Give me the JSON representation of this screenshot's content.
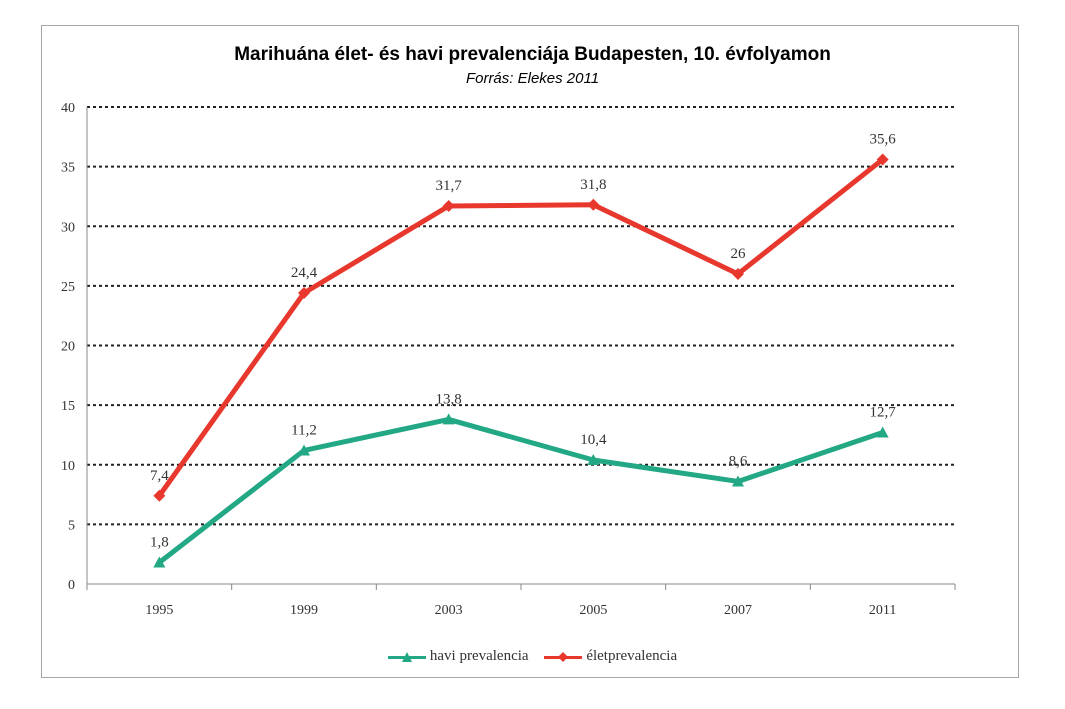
{
  "chart_data": {
    "type": "line",
    "title": "Marihuána élet- és havi prevalenciája Budapesten, 10. évfolyamon",
    "subtitle": "Forrás: Elekes 2011",
    "categories": [
      "1995",
      "1999",
      "2003",
      "2005",
      "2007",
      "2011"
    ],
    "ylim": [
      0,
      40
    ],
    "yticks": [
      0,
      5,
      10,
      15,
      20,
      25,
      30,
      35,
      40
    ],
    "ytick_labels": [
      "0",
      "5",
      "10",
      "15",
      "20",
      "25",
      "30",
      "35",
      "40"
    ],
    "grid": true,
    "legend_position": "bottom",
    "series": [
      {
        "name": "havi prevalencia",
        "values": [
          1.8,
          11.2,
          13.8,
          10.4,
          8.6,
          12.7
        ],
        "labels": [
          "1,8",
          "11,2",
          "13,8",
          "10,4",
          "8,6",
          "12,7"
        ],
        "color": "#22a884",
        "marker": "triangle"
      },
      {
        "name": "életprevalencia",
        "values": [
          7.4,
          24.4,
          31.7,
          31.8,
          26,
          35.6
        ],
        "labels": [
          "7,4",
          "24,4",
          "31,7",
          "31,8",
          "26",
          "35,6"
        ],
        "color": "#e8372c",
        "marker": "diamond"
      }
    ]
  }
}
